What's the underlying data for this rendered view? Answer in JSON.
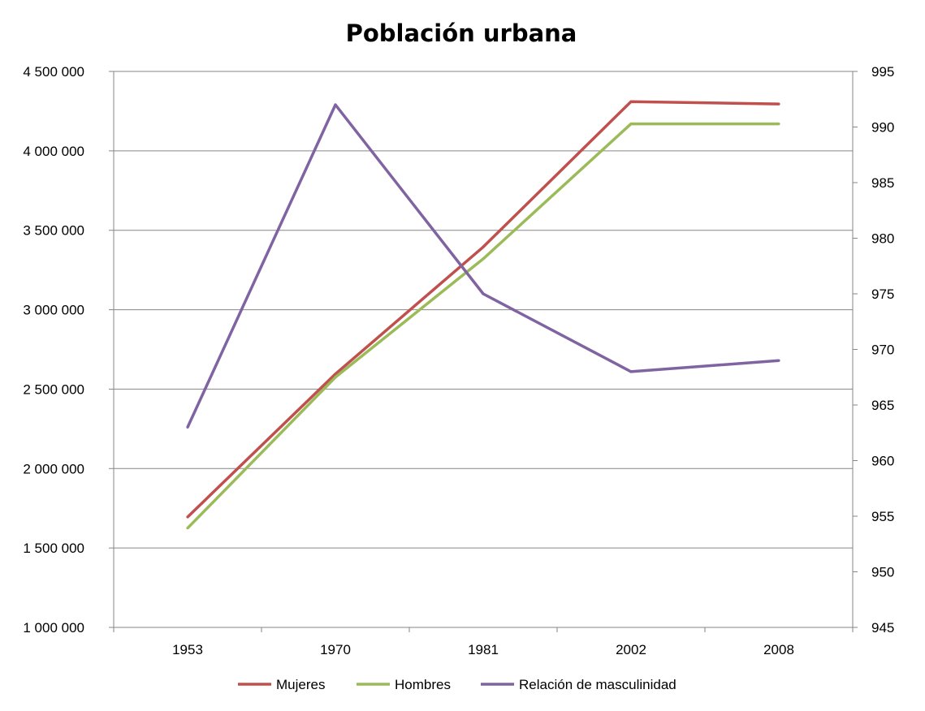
{
  "chart_data": {
    "type": "line",
    "title": "Población urbana",
    "categories": [
      "1953",
      "1970",
      "1981",
      "2002",
      "2008"
    ],
    "y_left": {
      "ylim": [
        1000000,
        4500000
      ],
      "ticks": [
        1000000,
        1500000,
        2000000,
        2500000,
        3000000,
        3500000,
        4000000,
        4500000
      ],
      "tick_labels": [
        "1 000 000",
        "1 500 000",
        "2 000 000",
        "2 500 000",
        "3 000 000",
        "3 500 000",
        "4 000 000",
        "4 500 000"
      ]
    },
    "y_right": {
      "ylim": [
        945,
        995
      ],
      "ticks": [
        945,
        950,
        955,
        960,
        965,
        970,
        975,
        980,
        985,
        990,
        995
      ],
      "tick_labels": [
        "945",
        "950",
        "955",
        "960",
        "965",
        "970",
        "975",
        "980",
        "985",
        "990",
        "995"
      ]
    },
    "grid": true,
    "legend_position": "bottom",
    "series": [
      {
        "name": "Mujeres",
        "axis": "left",
        "color": "#c0504d",
        "values": [
          1695000,
          2595000,
          3395000,
          4310000,
          4295000
        ]
      },
      {
        "name": "Hombres",
        "axis": "left",
        "color": "#9bbb59",
        "values": [
          1625000,
          2575000,
          3320000,
          4170000,
          4170000
        ]
      },
      {
        "name": "Relación de masculinidad",
        "axis": "right",
        "color": "#8064a2",
        "values": [
          963,
          992,
          975,
          968,
          969
        ]
      }
    ]
  }
}
